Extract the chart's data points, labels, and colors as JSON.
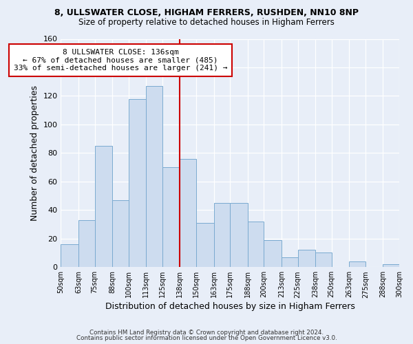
{
  "title_line1": "8, ULLSWATER CLOSE, HIGHAM FERRERS, RUSHDEN, NN10 8NP",
  "title_line2": "Size of property relative to detached houses in Higham Ferrers",
  "xlabel": "Distribution of detached houses by size in Higham Ferrers",
  "ylabel": "Number of detached properties",
  "bin_edges": [
    50,
    63,
    75,
    88,
    100,
    113,
    125,
    138,
    150,
    163,
    175,
    188,
    200,
    213,
    225,
    238,
    250,
    263,
    275,
    288,
    300
  ],
  "bin_counts": [
    16,
    33,
    85,
    47,
    118,
    127,
    70,
    76,
    31,
    45,
    45,
    32,
    19,
    7,
    12,
    10,
    0,
    4,
    0,
    2
  ],
  "bar_color": "#cddcef",
  "bar_edge_color": "#7aaad0",
  "vline_x": 138,
  "vline_color": "#cc0000",
  "ylim": [
    0,
    160
  ],
  "yticks": [
    0,
    20,
    40,
    60,
    80,
    100,
    120,
    140,
    160
  ],
  "annotation_title": "8 ULLSWATER CLOSE: 136sqm",
  "annotation_line1": "← 67% of detached houses are smaller (485)",
  "annotation_line2": "33% of semi-detached houses are larger (241) →",
  "annotation_box_color": "#ffffff",
  "annotation_box_edge": "#cc0000",
  "tick_labels": [
    "50sqm",
    "63sqm",
    "75sqm",
    "88sqm",
    "100sqm",
    "113sqm",
    "125sqm",
    "138sqm",
    "150sqm",
    "163sqm",
    "175sqm",
    "188sqm",
    "200sqm",
    "213sqm",
    "225sqm",
    "238sqm",
    "250sqm",
    "263sqm",
    "275sqm",
    "288sqm",
    "300sqm"
  ],
  "footer_line1": "Contains HM Land Registry data © Crown copyright and database right 2024.",
  "footer_line2": "Contains public sector information licensed under the Open Government Licence v3.0.",
  "bg_color": "#e8eef8"
}
